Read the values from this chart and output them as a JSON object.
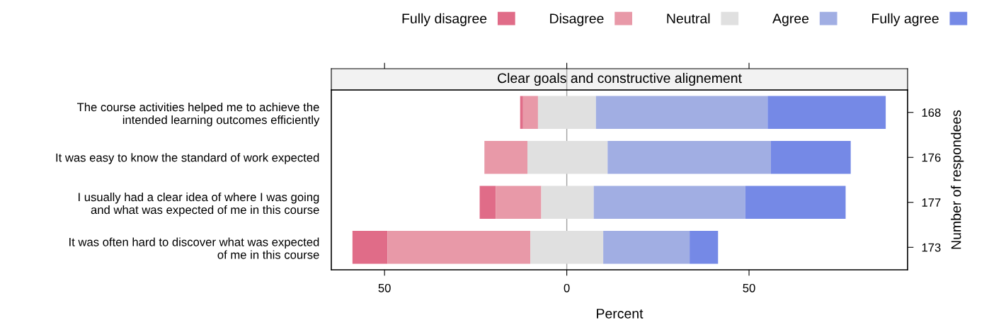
{
  "chart_data": {
    "type": "bar",
    "orientation": "horizontal",
    "title": "Clear goals and constructive alignement",
    "categories": [
      "The course activities helped me to achieve the\nintended learning outcomes efficiently",
      "It was easy to know the standard of work expected",
      "I usually had a clear idea of where I was going\nand what was expected of me in this course",
      "It was often hard to discover what was expected\nof me in this course"
    ],
    "y2_categories": [
      "168",
      "176",
      "177",
      "173"
    ],
    "series": [
      {
        "name": "Fully disagree",
        "color": "#e06c88",
        "base": [
          -12.8,
          null,
          -23.9,
          -58.8
        ],
        "values": [
          0.8,
          null,
          4.4,
          9.6
        ]
      },
      {
        "name": "Disagree",
        "color": "#e899a8",
        "base": [
          -12.0,
          -22.6,
          -19.5,
          -49.2
        ],
        "values": [
          4.1,
          11.8,
          12.5,
          39.2
        ]
      },
      {
        "name": "Neutral",
        "color": "#e0e0e0",
        "base": [
          -7.9,
          -10.8,
          -7.0,
          -10.0
        ],
        "values": [
          15.9,
          22.0,
          14.4,
          20.0
        ]
      },
      {
        "name": "Agree",
        "color": "#a1aee3",
        "base": [
          8.0,
          11.2,
          7.4,
          10.0
        ],
        "values": [
          47.1,
          44.8,
          41.6,
          23.7
        ]
      },
      {
        "name": "Fully agree",
        "color": "#7589e6",
        "base": [
          55.1,
          56.0,
          49.0,
          33.7
        ],
        "values": [
          32.4,
          21.9,
          27.5,
          7.8
        ]
      }
    ],
    "xlabel": "Percent",
    "y2label": "Number of respondees",
    "xlim": [
      -64.6,
      93.5
    ],
    "xticks": [
      {
        "value": -50,
        "label": "50"
      },
      0,
      50
    ],
    "ref_lines": [
      {
        "axis": "x",
        "value": 0,
        "color": "#a0a0a0"
      }
    ],
    "legend": "top",
    "grid": false
  }
}
